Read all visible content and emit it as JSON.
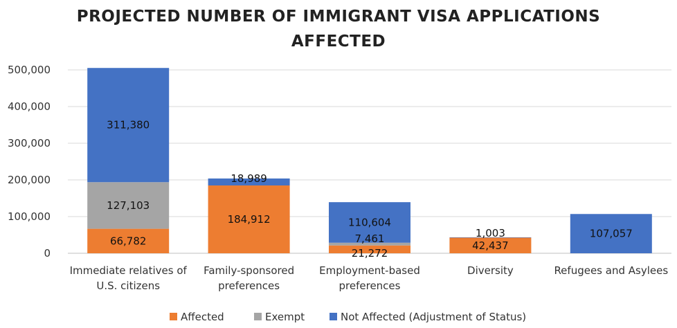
{
  "chart_data": {
    "type": "bar",
    "stacked": true,
    "title_lines": [
      "PROJECTED NUMBER OF IMMIGRANT VISA APPLICATIONS",
      "AFFECTED"
    ],
    "categories": [
      [
        "Immediate relatives of",
        "U.S. citizens"
      ],
      [
        "Family-sponsored",
        "preferences"
      ],
      [
        "Employment-based",
        "preferences"
      ],
      [
        "Diversity"
      ],
      [
        "Refugees and Asylees"
      ]
    ],
    "series": [
      {
        "name": "Affected",
        "color": "#ED7D31",
        "values": [
          66782,
          184912,
          21272,
          42437,
          0
        ],
        "labels": [
          "66,782",
          "184,912",
          "21,272",
          "42,437",
          ""
        ]
      },
      {
        "name": "Exempt",
        "color": "#A5A5A5",
        "values": [
          127103,
          0,
          7461,
          0,
          0
        ],
        "labels": [
          "127,103",
          "",
          "7,461",
          "",
          ""
        ]
      },
      {
        "name": "Not Affected (Adjustment of Status)",
        "color": "#4472C4",
        "values": [
          311380,
          18989,
          110604,
          1003,
          107057
        ],
        "labels": [
          "311,380",
          "18,989",
          "110,604",
          "1,003",
          "107,057"
        ]
      }
    ],
    "y_ticks": [
      0,
      100000,
      200000,
      300000,
      400000,
      500000
    ],
    "y_tick_labels": [
      "0",
      "100,000",
      "200,000",
      "300,000",
      "400,000",
      "500,000"
    ],
    "ylim": [
      0,
      500000
    ],
    "grid": true,
    "legend_position": "bottom",
    "xlabel": "",
    "ylabel": ""
  }
}
